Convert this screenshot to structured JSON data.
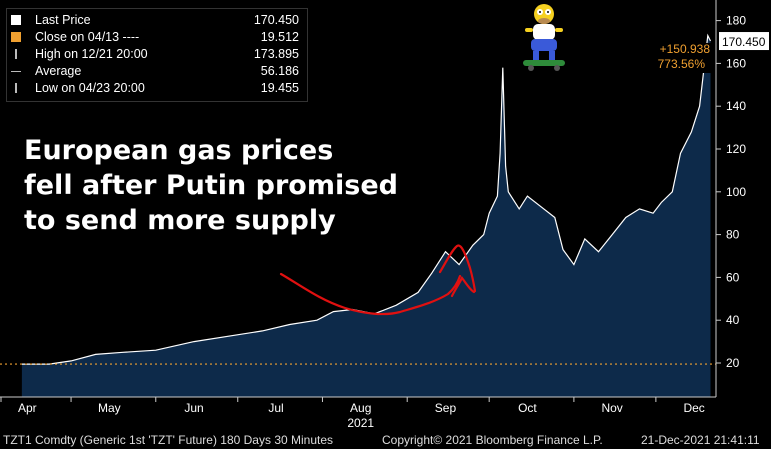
{
  "legend": {
    "rows": [
      {
        "marker": "square",
        "marker_color": "#ffffff",
        "label": "Last Price",
        "value": "170.450"
      },
      {
        "marker": "square",
        "marker_color": "#f0a030",
        "label": "Close on 04/13 ----",
        "value": "19.512"
      },
      {
        "marker": "tick",
        "marker_color": "#bbbbbb",
        "label": "High on 12/21 20:00",
        "value": "173.895"
      },
      {
        "marker": "dash",
        "marker_color": "#bbbbbb",
        "label": "Average",
        "value": "56.186"
      },
      {
        "marker": "tick",
        "marker_color": "#bbbbbb",
        "label": "Low on 04/23 20:00",
        "value": "19.455"
      }
    ]
  },
  "headline": {
    "line1": "European gas prices",
    "line2": "fell after Putin promised",
    "line3": "to send more supply"
  },
  "annotations": {
    "last_price_tag": "170.450",
    "change_abs": "+150.938",
    "change_pct": "773.56%"
  },
  "footer": {
    "instrument": "TZT1 Comdty (Generic 1st 'TZT' Future) 180 Days 30 Minutes",
    "copyright": "Copyright© 2021 Bloomberg Finance L.P.",
    "timestamp": "21-Dec-2021 21:41:11"
  },
  "colors": {
    "background": "#000000",
    "area_fill": "#0d2a4a",
    "price_line": "#ffffff",
    "close_line": "#f0a030",
    "change_text": "#f0a030",
    "scribble": "#e01010"
  },
  "icons": [
    "homer-skateboard-sticker"
  ],
  "chart_data": {
    "type": "area",
    "x_unit": "date (2021)",
    "ylim": [
      0,
      190
    ],
    "yticks": [
      20,
      40,
      60,
      80,
      100,
      120,
      140,
      160,
      180
    ],
    "xticks": [
      "Apr",
      "May",
      "Jun",
      "Jul",
      "Aug",
      "Sep",
      "Oct",
      "Nov",
      "Dec"
    ],
    "x_year_label": "2021",
    "close_reference": 19.512,
    "last_price": 170.45,
    "series": [
      {
        "x": [
          "2021-04-13",
          "2021-04-23",
          "2021-05-01",
          "2021-05-10",
          "2021-05-20",
          "2021-06-01",
          "2021-06-15",
          "2021-06-30",
          "2021-07-10",
          "2021-07-20",
          "2021-07-30",
          "2021-08-05",
          "2021-08-12",
          "2021-08-20",
          "2021-08-28",
          "2021-09-05",
          "2021-09-10",
          "2021-09-15",
          "2021-09-20",
          "2021-09-25",
          "2021-09-29",
          "2021-10-01",
          "2021-10-04",
          "2021-10-05",
          "2021-10-06",
          "2021-10-07",
          "2021-10-08",
          "2021-10-12",
          "2021-10-15",
          "2021-10-20",
          "2021-10-25",
          "2021-10-28",
          "2021-11-01",
          "2021-11-05",
          "2021-11-10",
          "2021-11-15",
          "2021-11-20",
          "2021-11-25",
          "2021-11-30",
          "2021-12-03",
          "2021-12-07",
          "2021-12-10",
          "2021-12-14",
          "2021-12-17",
          "2021-12-20",
          "2021-12-21"
        ],
        "y": [
          19.5,
          19.5,
          21,
          24,
          25,
          26,
          30,
          33,
          35,
          38,
          40,
          44,
          45,
          43,
          47,
          53,
          62,
          72,
          66,
          75,
          80,
          90,
          98,
          118,
          158,
          112,
          100,
          92,
          98,
          93,
          88,
          73,
          66,
          78,
          72,
          80,
          88,
          92,
          90,
          95,
          100,
          118,
          128,
          140,
          173,
          170.45
        ]
      }
    ]
  }
}
